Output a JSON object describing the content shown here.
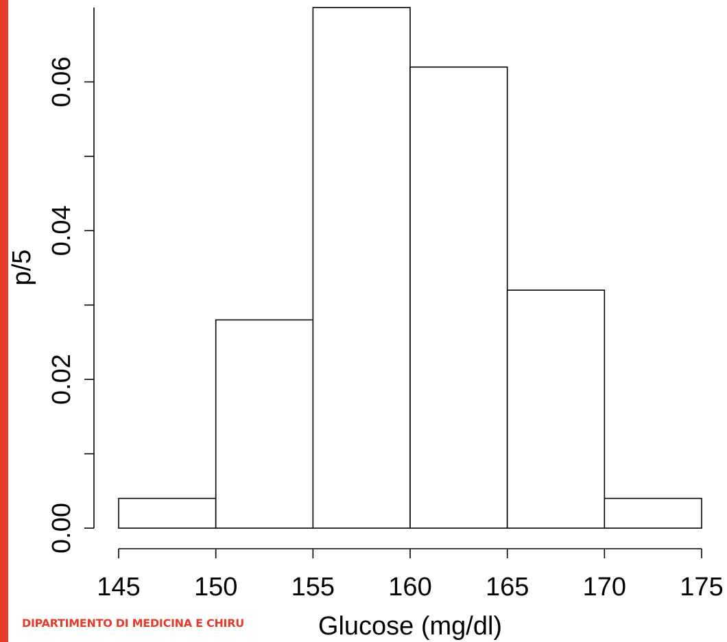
{
  "brand_color": "#e43b2a",
  "footer": {
    "text": "DIPARTIMENTO DI MEDICINA E CHIRU"
  },
  "chart_data": {
    "type": "bar",
    "subtype": "histogram",
    "bins": [
      [
        145,
        150
      ],
      [
        150,
        155
      ],
      [
        155,
        160
      ],
      [
        160,
        165
      ],
      [
        165,
        170
      ],
      [
        170,
        175
      ]
    ],
    "values": [
      0.004,
      0.028,
      0.07,
      0.062,
      0.032,
      0.004
    ],
    "xlabel": "Glucose (mg/dl)",
    "ylabel": "p/5",
    "xlim": [
      145,
      175
    ],
    "ylim": [
      0,
      0.07
    ],
    "x_ticks": [
      "145",
      "150",
      "155",
      "160",
      "165",
      "170",
      "175"
    ],
    "x_tick_values": [
      145,
      150,
      155,
      160,
      165,
      170,
      175
    ],
    "y_ticks": [
      "0.00",
      "0.02",
      "0.04",
      "0.06"
    ],
    "y_tick_values": [
      0,
      0.02,
      0.04,
      0.06
    ],
    "y_minor_tick_values": [
      0.01,
      0.03,
      0.05
    ],
    "grid": false,
    "bar_fill": "#ffffff",
    "bar_stroke": "#000000"
  }
}
